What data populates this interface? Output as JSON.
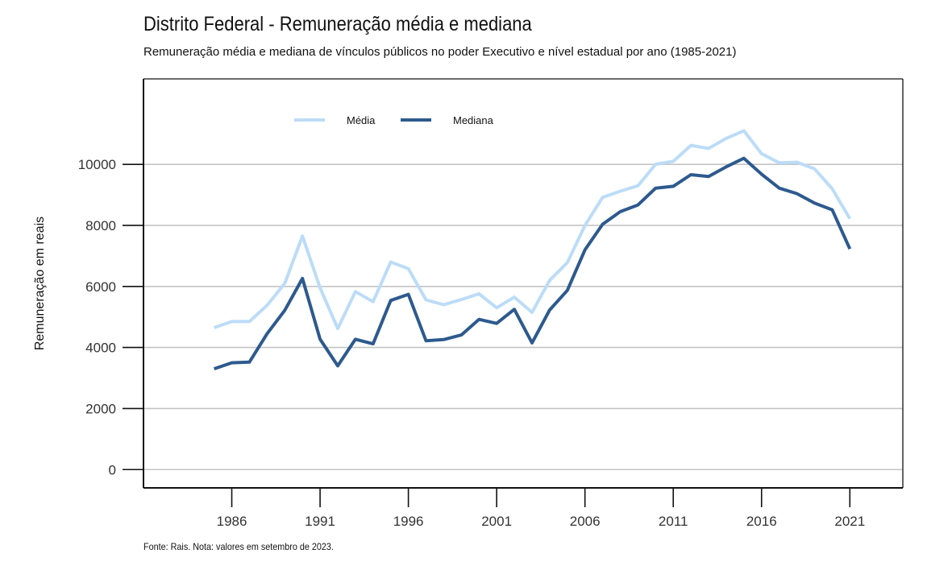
{
  "header": {
    "title": "Distrito Federal - Remuneração média e mediana",
    "subtitle": "Remuneração média e mediana de vínculos públicos no poder Executivo e nível estadual por ano (1985-2021)"
  },
  "footer": {
    "source": "Fonte: Rais. Nota: valores em setembro de 2023."
  },
  "chart_data": {
    "type": "line",
    "title": "Distrito Federal - Remuneração média e mediana",
    "xlabel": "",
    "ylabel": "Remuneração em reais",
    "xlim": [
      1981,
      2024
    ],
    "ylim": [
      -600,
      12800
    ],
    "x_ticks": [
      1986,
      1991,
      1996,
      2001,
      2006,
      2011,
      2016,
      2021
    ],
    "y_ticks": [
      0,
      2000,
      4000,
      6000,
      8000,
      10000
    ],
    "grid": "horizontal",
    "legend_position": "top-left",
    "x": [
      1985,
      1986,
      1987,
      1988,
      1989,
      1990,
      1991,
      1992,
      1993,
      1994,
      1995,
      1996,
      1997,
      1998,
      1999,
      2000,
      2001,
      2002,
      2003,
      2004,
      2005,
      2006,
      2007,
      2008,
      2009,
      2010,
      2011,
      2012,
      2013,
      2014,
      2015,
      2016,
      2017,
      2018,
      2019,
      2020,
      2021
    ],
    "series": [
      {
        "name": "Média",
        "color": "#bcdcf7",
        "values": [
          4650,
          4850,
          4850,
          5380,
          6100,
          7650,
          5950,
          4620,
          5830,
          5500,
          6800,
          6580,
          5560,
          5400,
          5570,
          5760,
          5300,
          5650,
          5150,
          6200,
          6780,
          8000,
          8920,
          9120,
          9300,
          10000,
          10100,
          10620,
          10520,
          10850,
          11100,
          10350,
          10050,
          10070,
          9850,
          9200,
          8220
        ]
      },
      {
        "name": "Mediana",
        "color": "#2d5a8e",
        "values": [
          3300,
          3500,
          3520,
          4450,
          5220,
          6260,
          4270,
          3400,
          4270,
          4120,
          5540,
          5740,
          4220,
          4260,
          4410,
          4920,
          4790,
          5250,
          4150,
          5230,
          5870,
          7200,
          8040,
          8450,
          8670,
          9220,
          9280,
          9660,
          9600,
          9920,
          10200,
          9680,
          9220,
          9040,
          8730,
          8510,
          7230
        ]
      }
    ]
  }
}
